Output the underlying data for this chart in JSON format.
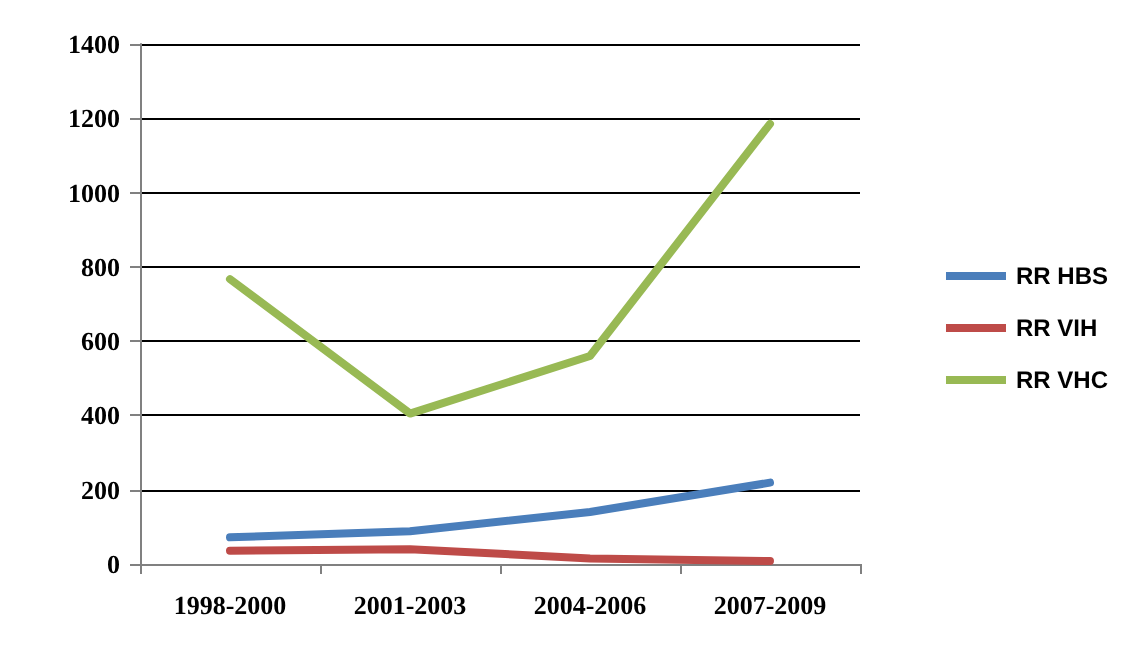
{
  "chart_data": {
    "type": "line",
    "categories": [
      "1998-2000",
      "2001-2003",
      "2004-2006",
      "2007-2009"
    ],
    "series": [
      {
        "name": "RR HBS",
        "color": "#4a7ebb",
        "values": [
          72,
          88,
          140,
          219
        ]
      },
      {
        "name": "RR VIH",
        "color": "#be4b48",
        "values": [
          36,
          40,
          15,
          8
        ]
      },
      {
        "name": "RR VHC",
        "color": "#98b954",
        "values": [
          767,
          405,
          560,
          1185
        ]
      }
    ],
    "ylim": [
      0,
      1400
    ],
    "yticks": [
      0,
      200,
      400,
      600,
      800,
      1000,
      1200,
      1400
    ],
    "grid": "y",
    "legend": "right",
    "marker": "none",
    "line_style": "solid"
  }
}
